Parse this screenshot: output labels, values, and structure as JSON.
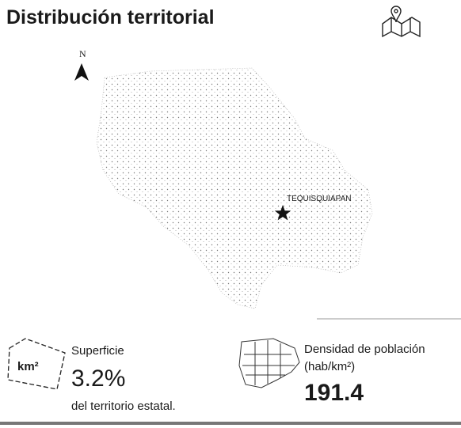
{
  "header": {
    "title": "Distribución territorial"
  },
  "map": {
    "north": "N",
    "city": "TEQUISQUIAPAN"
  },
  "stats": [
    {
      "icon": "km²",
      "label": "Superficie",
      "value": "3.2%",
      "note": "del territorio estatal."
    },
    {
      "label": "Densidad de población",
      "unit": "(hab/km²)",
      "value": "191.4"
    }
  ]
}
